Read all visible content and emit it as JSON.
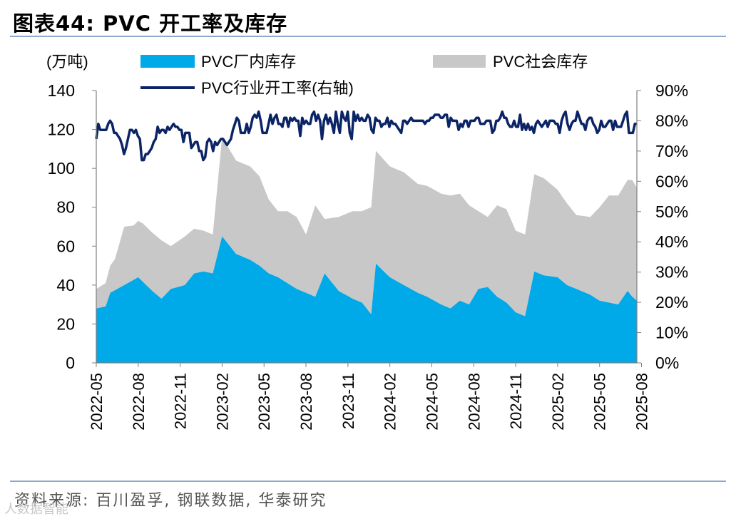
{
  "header": {
    "title": "图表44:  PVC 开工率及库存"
  },
  "footer": {
    "source": "资料来源:  百川盈孚, 钢联数据, 华泰研究",
    "watermark": "人数据智能"
  },
  "colors": {
    "factory": "#00a9e8",
    "social": "#c8c8c8",
    "rate": "#0b2466",
    "axis": "#808080"
  },
  "chart_data": {
    "type": "area",
    "title": "PVC 开工率及库存",
    "unit_label": "(万吨)",
    "legend": [
      "PVC厂内库存",
      "PVC社会库存",
      "PVC行业开工率(右轴)"
    ],
    "x_ticks": [
      "2022-05",
      "2022-08",
      "2022-11",
      "2023-02",
      "2023-05",
      "2023-08",
      "2023-11",
      "2024-02",
      "2024-05",
      "2024-08",
      "2024-11",
      "2025-02",
      "2025-05",
      "2025-08"
    ],
    "ylim_left": [
      0,
      140
    ],
    "yticks_left": [
      "0",
      "20",
      "40",
      "60",
      "80",
      "100",
      "120",
      "140"
    ],
    "ylim_right": [
      0,
      90
    ],
    "yticks_right": [
      "0%",
      "10%",
      "20%",
      "30%",
      "40%",
      "50%",
      "60%",
      "70%",
      "80%",
      "90%"
    ],
    "series": [
      {
        "name": "PVC厂内库存",
        "kind": "area-stack",
        "keys": [
          [
            0,
            28
          ],
          [
            2,
            29
          ],
          [
            3,
            36
          ],
          [
            6,
            40
          ],
          [
            9,
            44
          ],
          [
            12,
            37
          ],
          [
            14,
            33
          ],
          [
            16,
            38
          ],
          [
            19,
            40
          ],
          [
            21,
            46
          ],
          [
            23,
            47
          ],
          [
            25,
            46
          ],
          [
            27,
            65
          ],
          [
            30,
            56
          ],
          [
            33,
            53
          ],
          [
            35,
            50
          ],
          [
            37,
            46
          ],
          [
            39,
            44
          ],
          [
            41,
            41
          ],
          [
            43,
            38
          ],
          [
            45,
            36
          ],
          [
            47,
            34
          ],
          [
            49,
            46
          ],
          [
            52,
            37
          ],
          [
            55,
            33
          ],
          [
            57,
            31
          ],
          [
            59,
            25
          ],
          [
            60,
            51
          ],
          [
            63,
            44
          ],
          [
            66,
            40
          ],
          [
            69,
            36
          ],
          [
            71,
            34
          ],
          [
            74,
            30
          ],
          [
            76,
            28
          ],
          [
            78,
            32
          ],
          [
            80,
            30
          ],
          [
            82,
            38
          ],
          [
            84,
            39
          ],
          [
            86,
            34
          ],
          [
            88,
            31
          ],
          [
            90,
            26
          ],
          [
            92,
            24
          ],
          [
            94,
            47
          ],
          [
            96,
            45
          ],
          [
            99,
            44
          ],
          [
            101,
            40
          ],
          [
            103,
            38
          ],
          [
            106,
            35
          ],
          [
            108,
            32
          ],
          [
            110,
            31
          ],
          [
            112,
            30
          ],
          [
            114,
            37
          ],
          [
            115,
            34
          ],
          [
            116,
            32
          ]
        ]
      },
      {
        "name": "PVC社会库存",
        "kind": "area-stack",
        "keys": [
          [
            0,
            10
          ],
          [
            2,
            12
          ],
          [
            4,
            16
          ],
          [
            6,
            30
          ],
          [
            8,
            28
          ],
          [
            10,
            30
          ],
          [
            12,
            30
          ],
          [
            14,
            30
          ],
          [
            16,
            22
          ],
          [
            19,
            25
          ],
          [
            21,
            23
          ],
          [
            23,
            21
          ],
          [
            25,
            20
          ],
          [
            27,
            51
          ],
          [
            30,
            48
          ],
          [
            33,
            48
          ],
          [
            35,
            46
          ],
          [
            37,
            38
          ],
          [
            39,
            34
          ],
          [
            41,
            37
          ],
          [
            43,
            37
          ],
          [
            45,
            30
          ],
          [
            47,
            47
          ],
          [
            49,
            28
          ],
          [
            52,
            38
          ],
          [
            55,
            45
          ],
          [
            57,
            47
          ],
          [
            59,
            55
          ],
          [
            60,
            58
          ],
          [
            63,
            57
          ],
          [
            66,
            58
          ],
          [
            69,
            56
          ],
          [
            71,
            57
          ],
          [
            74,
            57
          ],
          [
            76,
            58
          ],
          [
            78,
            55
          ],
          [
            80,
            51
          ],
          [
            82,
            40
          ],
          [
            84,
            36
          ],
          [
            86,
            47
          ],
          [
            88,
            48
          ],
          [
            90,
            42
          ],
          [
            92,
            42
          ],
          [
            94,
            50
          ],
          [
            96,
            50
          ],
          [
            99,
            45
          ],
          [
            101,
            42
          ],
          [
            103,
            38
          ],
          [
            106,
            40
          ],
          [
            108,
            48
          ],
          [
            110,
            55
          ],
          [
            112,
            56
          ],
          [
            114,
            57
          ],
          [
            115,
            60
          ],
          [
            116,
            58
          ]
        ]
      },
      {
        "name": "PVC行业开工率(右轴)",
        "kind": "line-right",
        "points": [
          74,
          79,
          77,
          77,
          77,
          77,
          79,
          80,
          79,
          76,
          76,
          75,
          74,
          72,
          69,
          71,
          74,
          77,
          77,
          76,
          77,
          75,
          74,
          67,
          67,
          69,
          69,
          70,
          71,
          73,
          74,
          78,
          76,
          77,
          77,
          76,
          78,
          77,
          78,
          79,
          78,
          78,
          77,
          77,
          73,
          76,
          76,
          76,
          71,
          72,
          73,
          73,
          70,
          70,
          67,
          68,
          73,
          74,
          73,
          70,
          73,
          72,
          73,
          74,
          74,
          73,
          72,
          73,
          74,
          77,
          79,
          81,
          80,
          76,
          76,
          76,
          79,
          76,
          78,
          81,
          82,
          81,
          83,
          80,
          76,
          76,
          76,
          79,
          82,
          79,
          81,
          82,
          79,
          79,
          78,
          81,
          81,
          78,
          81,
          80,
          81,
          80,
          80,
          75,
          81,
          79,
          80,
          79,
          79,
          82,
          83,
          80,
          82,
          80,
          74,
          80,
          82,
          79,
          81,
          79,
          76,
          83,
          79,
          76,
          83,
          81,
          80,
          83,
          76,
          74,
          83,
          80,
          82,
          80,
          81,
          80,
          80,
          82,
          81,
          77,
          76,
          81,
          80,
          80,
          78,
          79,
          79,
          81,
          78,
          80,
          79,
          79,
          78,
          77,
          76,
          80,
          80,
          79,
          80,
          81,
          80,
          80,
          80,
          80,
          80,
          80,
          79,
          80,
          80,
          81,
          81,
          82,
          82,
          82,
          81,
          81,
          82,
          82,
          78,
          81,
          80,
          80,
          80,
          77,
          79,
          78,
          80,
          80,
          78,
          80,
          80,
          80,
          81,
          81,
          79,
          79,
          79,
          80,
          80,
          80,
          76,
          77,
          80,
          80,
          81,
          83,
          81,
          81,
          79,
          78,
          78,
          80,
          78,
          78,
          82,
          77,
          79,
          77,
          79,
          77,
          78,
          76,
          79,
          80,
          79,
          78,
          79,
          80,
          78,
          80,
          80,
          80,
          79,
          79,
          76,
          80,
          82,
          83,
          79,
          77,
          79,
          80,
          80,
          83,
          81,
          79,
          79,
          77,
          80,
          81,
          81,
          79,
          78,
          76,
          77,
          80,
          78,
          78,
          79,
          80,
          80,
          77,
          80,
          78,
          78,
          78,
          80,
          82,
          83,
          76,
          76,
          76,
          79,
          79
        ]
      }
    ]
  }
}
